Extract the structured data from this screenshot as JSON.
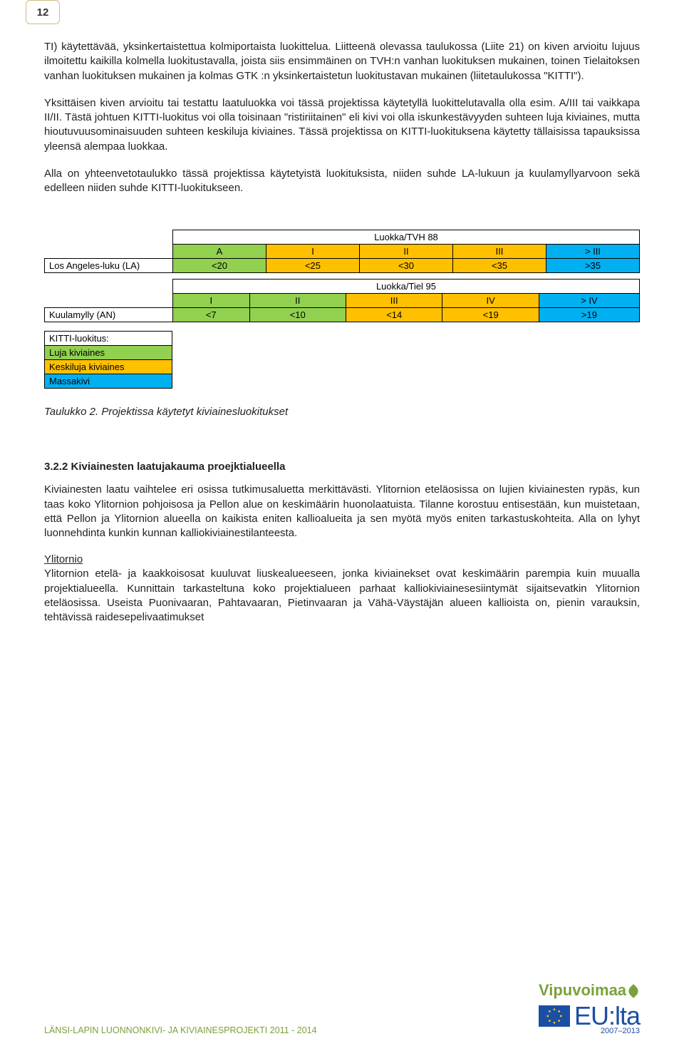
{
  "page_number": "12",
  "paragraphs": {
    "p1": "TI) käytettävää, yksinkertaistettua kolmiportaista luokittelua. Liitteenä olevassa taulukossa (Liite 21) on kiven arvioitu lujuus ilmoitettu kaikilla kolmella luokitustavalla, joista siis ensimmäinen on TVH:n vanhan luokituksen mukainen, toinen Tielaitoksen vanhan luokituksen mukainen ja kolmas GTK :n yksinkertaistetun luokitustavan mukainen (liitetaulukossa \"KITTI\").",
    "p2": "Yksittäisen kiven arvioitu tai testattu laatuluokka voi tässä projektissa käytetyllä luokittelutavalla olla esim. A/III tai vaikkapa II/II. Tästä johtuen KITTI-luokitus voi olla toisinaan \"ristiriitainen\" eli kivi voi olla iskunkestävyyden suhteen luja kiviaines, mutta hioutuvuusominaisuuden suhteen keskiluja kiviaines. Tässä projektissa on KITTI-luokituksena käytetty tällaisissa tapauksissa yleensä alempaa luokkaa.",
    "p3": "Alla on yhteenvetotaulukko tässä projektissa käytetyistä luokituksista, niiden suhde LA-lukuun ja kuulamyllyarvoon sekä edelleen niiden suhde KITTI-luokitukseen.",
    "p4": "Kiviainesten laatu vaihtelee eri osissa tutkimusaluetta merkittävästi. Ylitornion eteläosissa on lujien kiviainesten rypäs, kun taas koko Ylitornion pohjoisosa ja Pellon alue on keskimäärin huonolaatuista. Tilanne korostuu entisestään, kun muistetaan, että Pellon ja Ylitornion alueella on kaikista eniten kallioalueita ja sen myötä myös eniten tarkastuskohteita. Alla on lyhyt luonnehdinta kunkin kunnan kalliokiviainestilanteesta.",
    "p5": "Ylitornion etelä- ja kaakkoisosat kuuluvat liuskealueeseen, jonka kiviainekset ovat keskimäärin parempia kuin muualla projektialueella. Kunnittain tarkasteltuna koko projektialueen parhaat kalliokiviainesesiintymät sijaitsevatkin Ylitornion eteläosissa. Useista Puonivaaran, Pahtavaaran, Pietinvaaran ja Vähä-Väystäjän alueen kallioista on, pienin varauksin, tehtävissä raidesepelivaatimukset"
  },
  "table_tvh": {
    "title": "Luokka/TVH 88",
    "row_label": "Los Angeles-luku (LA)",
    "headers": [
      "A",
      "I",
      "II",
      "III",
      "> III"
    ],
    "values": [
      "<20",
      "<25",
      "<30",
      "<35",
      ">35"
    ],
    "colors": [
      "green",
      "orange",
      "orange",
      "orange",
      "blue"
    ]
  },
  "table_tiel": {
    "title": "Luokka/Tiel 95",
    "row_label": "Kuulamylly (AN)",
    "headers": [
      "I",
      "II",
      "III",
      "IV",
      "> IV"
    ],
    "values": [
      "<7",
      "<10",
      "<14",
      "<19",
      ">19"
    ],
    "colors": [
      "green",
      "green",
      "orange",
      "orange",
      "blue"
    ]
  },
  "kitti": {
    "title": "KITTI-luokitus:",
    "rows": [
      {
        "label": "Luja kiviaines",
        "color": "green"
      },
      {
        "label": "Keskiluja kiviaines",
        "color": "orange"
      },
      {
        "label": "Massakivi",
        "color": "blue"
      }
    ]
  },
  "caption": "Taulukko 2. Projektissa käytetyt kiviainesluokitukset",
  "section_heading": "3.2.2 Kiviainesten laatujakauma proejktialueella",
  "sub_heading": "Ylitornio",
  "footer": {
    "left": "LÄNSI-LAPIN LUONNONKIVI- JA KIVIAINESPROJEKTI 2011 - 2014",
    "vip": "Vipuvoimaa",
    "eu": "EU:lta",
    "years": "2007–2013"
  },
  "palette": {
    "green": "#92d050",
    "orange": "#ffc000",
    "blue": "#00b0f0",
    "tab_border": "#cdbd84",
    "footer_green": "#7aa23a",
    "eu_blue": "#1b4fa3"
  }
}
